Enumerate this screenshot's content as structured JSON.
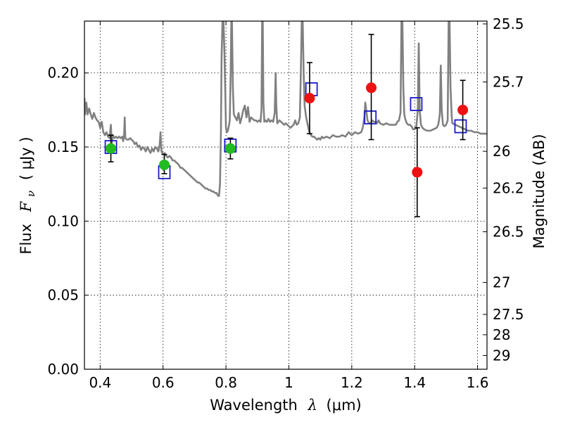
{
  "chart_data": {
    "type": "scatter",
    "xlabel_prefix": "Wavelength",
    "xlabel_symbol": "λ",
    "xlabel_unit": "(μm)",
    "ylabel_prefix": "Flux",
    "ylabel_symbol": "F",
    "ylabel_subscript": "ν",
    "ylabel_unit": "( μJy )",
    "y2label": "Magnitude (AB)",
    "xlim": [
      0.35,
      1.63
    ],
    "ylim": [
      0.0,
      0.235
    ],
    "grid": true,
    "x_ticks": [
      0.4,
      0.6,
      0.8,
      1.0,
      1.2,
      1.4,
      1.6
    ],
    "x_tick_labels": [
      "0.4",
      "0.6",
      "0.8",
      "1",
      "1.2",
      "1.4",
      "1.6"
    ],
    "y_ticks": [
      0.0,
      0.05,
      0.1,
      0.15,
      0.2
    ],
    "y_tick_labels": [
      "0.00",
      "0.05",
      "0.10",
      "0.15",
      "0.20"
    ],
    "y2_ticks": [
      {
        "label": "25.5",
        "flux": 0.2331
      },
      {
        "label": "25.7",
        "flux": 0.1939
      },
      {
        "label": "26",
        "flux": 0.1471
      },
      {
        "label": "26.2",
        "flux": 0.1223
      },
      {
        "label": "26.5",
        "flux": 0.0928
      },
      {
        "label": "27",
        "flux": 0.0586
      },
      {
        "label": "27.5",
        "flux": 0.037
      },
      {
        "label": "28",
        "flux": 0.0233
      },
      {
        "label": "29",
        "flux": 0.0093
      }
    ],
    "colors": {
      "model": "#808080",
      "optical_obs": "#22bb22",
      "ir_obs": "#ee1111",
      "synthetic": "#1a1acc",
      "errorbar": "#000000"
    },
    "series": [
      {
        "name": "model-spectrum",
        "kind": "line",
        "points": [
          [
            0.35,
            0.183
          ],
          [
            0.352,
            0.172
          ],
          [
            0.356,
            0.18
          ],
          [
            0.36,
            0.172
          ],
          [
            0.365,
            0.176
          ],
          [
            0.37,
            0.172
          ],
          [
            0.375,
            0.169
          ],
          [
            0.38,
            0.173
          ],
          [
            0.385,
            0.17
          ],
          [
            0.39,
            0.168
          ],
          [
            0.395,
            0.167
          ],
          [
            0.4,
            0.163
          ],
          [
            0.405,
            0.167
          ],
          [
            0.41,
            0.16
          ],
          [
            0.415,
            0.158
          ],
          [
            0.42,
            0.16
          ],
          [
            0.425,
            0.157
          ],
          [
            0.43,
            0.156
          ],
          [
            0.434,
            0.165
          ],
          [
            0.437,
            0.152
          ],
          [
            0.44,
            0.158
          ],
          [
            0.445,
            0.156
          ],
          [
            0.45,
            0.157
          ],
          [
            0.455,
            0.156
          ],
          [
            0.46,
            0.157
          ],
          [
            0.465,
            0.156
          ],
          [
            0.47,
            0.157
          ],
          [
            0.473,
            0.154
          ],
          [
            0.476,
            0.158
          ],
          [
            0.478,
            0.17
          ],
          [
            0.48,
            0.156
          ],
          [
            0.485,
            0.155
          ],
          [
            0.49,
            0.155
          ],
          [
            0.495,
            0.156
          ],
          [
            0.5,
            0.155
          ],
          [
            0.505,
            0.154
          ],
          [
            0.51,
            0.152
          ],
          [
            0.515,
            0.153
          ],
          [
            0.52,
            0.15
          ],
          [
            0.525,
            0.151
          ],
          [
            0.53,
            0.148
          ],
          [
            0.535,
            0.15
          ],
          [
            0.54,
            0.149
          ],
          [
            0.545,
            0.147
          ],
          [
            0.55,
            0.15
          ],
          [
            0.555,
            0.148
          ],
          [
            0.56,
            0.146
          ],
          [
            0.565,
            0.149
          ],
          [
            0.57,
            0.147
          ],
          [
            0.575,
            0.15
          ],
          [
            0.58,
            0.149
          ],
          [
            0.585,
            0.147
          ],
          [
            0.589,
            0.151
          ],
          [
            0.592,
            0.16
          ],
          [
            0.595,
            0.147
          ],
          [
            0.6,
            0.145
          ],
          [
            0.605,
            0.146
          ],
          [
            0.61,
            0.144
          ],
          [
            0.615,
            0.143
          ],
          [
            0.62,
            0.144
          ],
          [
            0.625,
            0.143
          ],
          [
            0.63,
            0.141
          ],
          [
            0.635,
            0.141
          ],
          [
            0.64,
            0.14
          ],
          [
            0.645,
            0.139
          ],
          [
            0.65,
            0.138
          ],
          [
            0.655,
            0.136
          ],
          [
            0.66,
            0.136
          ],
          [
            0.665,
            0.135
          ],
          [
            0.67,
            0.134
          ],
          [
            0.675,
            0.133
          ],
          [
            0.68,
            0.132
          ],
          [
            0.685,
            0.131
          ],
          [
            0.69,
            0.13
          ],
          [
            0.695,
            0.129
          ],
          [
            0.7,
            0.128
          ],
          [
            0.705,
            0.127
          ],
          [
            0.71,
            0.126
          ],
          [
            0.715,
            0.126
          ],
          [
            0.72,
            0.125
          ],
          [
            0.725,
            0.124
          ],
          [
            0.73,
            0.123
          ],
          [
            0.735,
            0.122
          ],
          [
            0.74,
            0.122
          ],
          [
            0.745,
            0.121
          ],
          [
            0.75,
            0.121
          ],
          [
            0.755,
            0.12
          ],
          [
            0.76,
            0.12
          ],
          [
            0.765,
            0.119
          ],
          [
            0.77,
            0.119
          ],
          [
            0.775,
            0.117
          ],
          [
            0.778,
            0.117
          ],
          [
            0.781,
            0.125
          ],
          [
            0.784,
            0.16
          ],
          [
            0.786,
            0.21
          ],
          [
            0.789,
            0.235
          ],
          [
            0.792,
            0.235
          ],
          [
            0.795,
            0.215
          ],
          [
            0.798,
            0.185
          ],
          [
            0.8,
            0.163
          ],
          [
            0.803,
            0.16
          ],
          [
            0.806,
            0.161
          ],
          [
            0.81,
            0.165
          ],
          [
            0.812,
            0.168
          ],
          [
            0.815,
            0.2
          ],
          [
            0.817,
            0.235
          ],
          [
            0.819,
            0.235
          ],
          [
            0.822,
            0.19
          ],
          [
            0.825,
            0.172
          ],
          [
            0.83,
            0.17
          ],
          [
            0.835,
            0.168
          ],
          [
            0.84,
            0.173
          ],
          [
            0.845,
            0.166
          ],
          [
            0.85,
            0.17
          ],
          [
            0.855,
            0.175
          ],
          [
            0.86,
            0.178
          ],
          [
            0.865,
            0.17
          ],
          [
            0.87,
            0.177
          ],
          [
            0.875,
            0.167
          ],
          [
            0.88,
            0.17
          ],
          [
            0.885,
            0.169
          ],
          [
            0.89,
            0.168
          ],
          [
            0.895,
            0.168
          ],
          [
            0.9,
            0.167
          ],
          [
            0.905,
            0.168
          ],
          [
            0.91,
            0.167
          ],
          [
            0.913,
            0.176
          ],
          [
            0.915,
            0.235
          ],
          [
            0.917,
            0.235
          ],
          [
            0.919,
            0.18
          ],
          [
            0.922,
            0.167
          ],
          [
            0.925,
            0.168
          ],
          [
            0.93,
            0.167
          ],
          [
            0.935,
            0.169
          ],
          [
            0.94,
            0.167
          ],
          [
            0.945,
            0.168
          ],
          [
            0.95,
            0.167
          ],
          [
            0.955,
            0.173
          ],
          [
            0.958,
            0.2
          ],
          [
            0.96,
            0.178
          ],
          [
            0.963,
            0.166
          ],
          [
            0.97,
            0.168
          ],
          [
            0.975,
            0.167
          ],
          [
            0.98,
            0.166
          ],
          [
            0.985,
            0.165
          ],
          [
            0.99,
            0.166
          ],
          [
            0.995,
            0.165
          ],
          [
            1.0,
            0.164
          ],
          [
            1.005,
            0.163
          ],
          [
            1.01,
            0.164
          ],
          [
            1.015,
            0.165
          ],
          [
            1.02,
            0.168
          ],
          [
            1.025,
            0.165
          ],
          [
            1.03,
            0.166
          ],
          [
            1.035,
            0.17
          ],
          [
            1.038,
            0.2
          ],
          [
            1.041,
            0.235
          ],
          [
            1.044,
            0.235
          ],
          [
            1.047,
            0.2
          ],
          [
            1.05,
            0.178
          ],
          [
            1.055,
            0.17
          ],
          [
            1.06,
            0.165
          ],
          [
            1.065,
            0.16
          ],
          [
            1.07,
            0.158
          ],
          [
            1.075,
            0.157
          ],
          [
            1.08,
            0.157
          ],
          [
            1.085,
            0.156
          ],
          [
            1.09,
            0.155
          ],
          [
            1.095,
            0.156
          ],
          [
            1.1,
            0.155
          ],
          [
            1.105,
            0.157
          ],
          [
            1.11,
            0.156
          ],
          [
            1.12,
            0.157
          ],
          [
            1.13,
            0.156
          ],
          [
            1.14,
            0.158
          ],
          [
            1.15,
            0.157
          ],
          [
            1.16,
            0.157
          ],
          [
            1.17,
            0.158
          ],
          [
            1.18,
            0.157
          ],
          [
            1.19,
            0.16
          ],
          [
            1.2,
            0.158
          ],
          [
            1.21,
            0.16
          ],
          [
            1.22,
            0.159
          ],
          [
            1.23,
            0.16
          ],
          [
            1.235,
            0.163
          ],
          [
            1.24,
            0.17
          ],
          [
            1.243,
            0.18
          ],
          [
            1.246,
            0.175
          ],
          [
            1.25,
            0.168
          ],
          [
            1.255,
            0.166
          ],
          [
            1.26,
            0.166
          ],
          [
            1.265,
            0.168
          ],
          [
            1.27,
            0.167
          ],
          [
            1.275,
            0.167
          ],
          [
            1.28,
            0.166
          ],
          [
            1.285,
            0.168
          ],
          [
            1.29,
            0.166
          ],
          [
            1.3,
            0.165
          ],
          [
            1.31,
            0.166
          ],
          [
            1.32,
            0.165
          ],
          [
            1.33,
            0.165
          ],
          [
            1.34,
            0.165
          ],
          [
            1.345,
            0.167
          ],
          [
            1.35,
            0.168
          ],
          [
            1.355,
            0.173
          ],
          [
            1.358,
            0.235
          ],
          [
            1.361,
            0.235
          ],
          [
            1.364,
            0.19
          ],
          [
            1.367,
            0.172
          ],
          [
            1.37,
            0.169
          ],
          [
            1.375,
            0.166
          ],
          [
            1.38,
            0.165
          ],
          [
            1.385,
            0.165
          ],
          [
            1.39,
            0.164
          ],
          [
            1.395,
            0.162
          ],
          [
            1.4,
            0.162
          ],
          [
            1.405,
            0.163
          ],
          [
            1.41,
            0.175
          ],
          [
            1.413,
            0.22
          ],
          [
            1.416,
            0.175
          ],
          [
            1.42,
            0.165
          ],
          [
            1.425,
            0.163
          ],
          [
            1.43,
            0.162
          ],
          [
            1.44,
            0.161
          ],
          [
            1.45,
            0.161
          ],
          [
            1.46,
            0.162
          ],
          [
            1.47,
            0.163
          ],
          [
            1.475,
            0.165
          ],
          [
            1.48,
            0.172
          ],
          [
            1.483,
            0.205
          ],
          [
            1.486,
            0.175
          ],
          [
            1.49,
            0.165
          ],
          [
            1.495,
            0.164
          ],
          [
            1.5,
            0.165
          ],
          [
            1.505,
            0.168
          ],
          [
            1.508,
            0.235
          ],
          [
            1.511,
            0.235
          ],
          [
            1.514,
            0.19
          ],
          [
            1.518,
            0.17
          ],
          [
            1.52,
            0.166
          ],
          [
            1.53,
            0.165
          ],
          [
            1.54,
            0.164
          ],
          [
            1.55,
            0.163
          ],
          [
            1.56,
            0.162
          ],
          [
            1.57,
            0.161
          ],
          [
            1.58,
            0.161
          ],
          [
            1.59,
            0.16
          ],
          [
            1.6,
            0.16
          ],
          [
            1.61,
            0.159
          ],
          [
            1.62,
            0.159
          ],
          [
            1.63,
            0.159
          ]
        ]
      },
      {
        "name": "synthetic-photometry",
        "kind": "open-square",
        "points": [
          [
            0.434,
            0.15
          ],
          [
            0.604,
            0.133
          ],
          [
            0.814,
            0.151
          ],
          [
            1.072,
            0.189
          ],
          [
            1.259,
            0.17
          ],
          [
            1.405,
            0.179
          ],
          [
            1.546,
            0.164
          ]
        ]
      },
      {
        "name": "optical-observed",
        "kind": "filled-circle",
        "points": [
          {
            "x": 0.434,
            "y": 0.149,
            "yerr_low": 0.14,
            "yerr_high": 0.158
          },
          {
            "x": 0.604,
            "y": 0.138,
            "yerr_low": 0.132,
            "yerr_high": 0.145
          },
          {
            "x": 0.814,
            "y": 0.149,
            "yerr_low": 0.142,
            "yerr_high": 0.156
          }
        ]
      },
      {
        "name": "ir-observed",
        "kind": "filled-circle",
        "points": [
          {
            "x": 1.066,
            "y": 0.183,
            "yerr_low": 0.159,
            "yerr_high": 0.207
          },
          {
            "x": 1.262,
            "y": 0.19,
            "yerr_low": 0.155,
            "yerr_high": 0.226
          },
          {
            "x": 1.408,
            "y": 0.133,
            "yerr_low": 0.103,
            "yerr_high": 0.163
          },
          {
            "x": 1.553,
            "y": 0.175,
            "yerr_low": 0.155,
            "yerr_high": 0.195
          }
        ]
      }
    ]
  }
}
